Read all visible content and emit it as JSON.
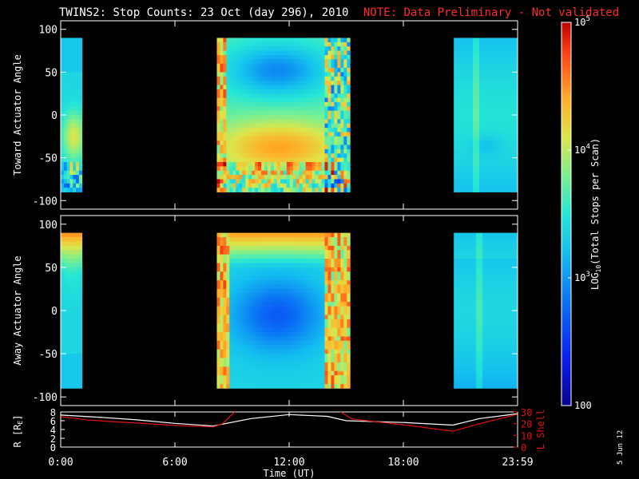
{
  "title": "TWINS2: Stop Counts: 23 Oct (day 296), 2010",
  "note": "NOTE: Data Preliminary - Not validated",
  "date_stamp": "5 Jun 12",
  "colors": {
    "background": "#000000",
    "axis": "#ffffff",
    "note": "#ff2a2a",
    "r_line": "#ffffff",
    "lshell_line": "#e01010"
  },
  "chart_data": [
    {
      "type": "heatmap",
      "panel": "toward",
      "ylabel": "Toward Actuator Angle",
      "ylim": [
        -110,
        110
      ],
      "yticks": [
        100,
        50,
        0,
        -50,
        -100
      ],
      "xlim": [
        0,
        24
      ],
      "y_extent": [
        -90,
        90
      ],
      "segments": [
        {
          "start": 0.0,
          "end": 1.12,
          "scheme": "toward_a"
        },
        {
          "start": 8.2,
          "end": 15.2,
          "scheme": "toward_b"
        },
        {
          "start": 20.65,
          "end": 24.0,
          "scheme": "toward_c"
        }
      ]
    },
    {
      "type": "heatmap",
      "panel": "away",
      "ylabel": "Away Actuator Angle",
      "ylim": [
        -110,
        110
      ],
      "yticks": [
        100,
        50,
        0,
        -50,
        -100
      ],
      "xlim": [
        0,
        24
      ],
      "y_extent": [
        -90,
        90
      ],
      "segments": [
        {
          "start": 0.0,
          "end": 1.12,
          "scheme": "away_a"
        },
        {
          "start": 8.2,
          "end": 15.2,
          "scheme": "away_b"
        },
        {
          "start": 20.65,
          "end": 24.0,
          "scheme": "away_c"
        }
      ]
    },
    {
      "type": "line",
      "panel": "orbit",
      "ylabel": "R [RE]",
      "ylabel_right": "L Shell",
      "xlabel": "Time (UT)",
      "xlim": [
        0,
        24
      ],
      "xticks": [
        0,
        6,
        12,
        18,
        24
      ],
      "xtick_labels": [
        "0:00",
        "6:00",
        "12:00",
        "18:00",
        "23:59"
      ],
      "ylim_left": [
        0,
        8
      ],
      "yticks_left": [
        8,
        6,
        4,
        2,
        0
      ],
      "ylim_right": [
        0,
        30
      ],
      "yticks_right": [
        30,
        20,
        10,
        0
      ],
      "series": [
        {
          "name": "R",
          "axis": "left",
          "color": "#ffffff",
          "x": [
            0,
            2,
            4,
            6,
            8,
            10,
            12,
            14,
            15,
            18,
            20.6,
            22,
            24
          ],
          "y": [
            7.3,
            6.8,
            6.2,
            5.4,
            4.8,
            6.5,
            7.4,
            7.0,
            6.0,
            5.6,
            5.0,
            6.5,
            7.6
          ]
        },
        {
          "name": "L Shell",
          "axis": "right",
          "color": "#e01010",
          "x": [
            0,
            1.5,
            4,
            6,
            8,
            8.5,
            9.2,
            14.6,
            15.3,
            18,
            20.6,
            22,
            24
          ],
          "y": [
            26,
            23,
            20.5,
            18.5,
            17.2,
            20,
            31,
            31,
            24,
            19,
            13.5,
            20,
            28
          ]
        }
      ]
    },
    {
      "type": "colorbar",
      "scale": "log",
      "label": "LOG10(Total Stops per Scan)",
      "label_prefix": "LOG",
      "label_sub": "10",
      "label_suffix": "(Total Stops per Scan)",
      "range": [
        100,
        100000
      ],
      "ticks": [
        {
          "value": 100000,
          "base": "10",
          "exp": "5"
        },
        {
          "value": 10000,
          "base": "10",
          "exp": "4"
        },
        {
          "value": 1000,
          "base": "10",
          "exp": "3"
        },
        {
          "value": 100,
          "text": "100"
        }
      ]
    }
  ]
}
